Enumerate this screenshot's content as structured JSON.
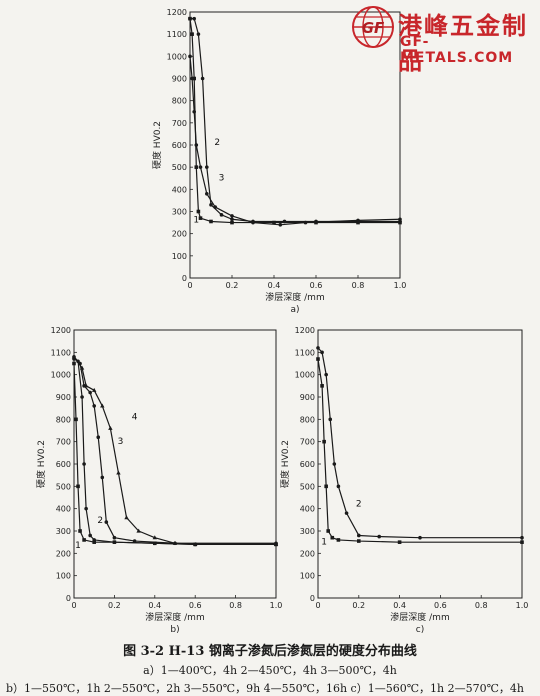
{
  "watermark": {
    "brand_cn": "港峰五金制品",
    "brand_en": "GF-METALS.COM",
    "logo_letters": "GF",
    "accent": "#c8262b"
  },
  "figure": {
    "title": "图 3-2   H-13 钢离子渗氮后渗氮层的硬度分布曲线",
    "legend_a": "a）1—400℃，4h  2—450℃，4h  3—500℃，4h",
    "legend_bc": "b）1—550℃，1h  2—550℃，2h  3—550℃，9h  4—550℃，16h  c）1—560℃，1h  2—570℃，4h"
  },
  "chart_data": [
    {
      "id": "a",
      "type": "line",
      "panel_label": "a)",
      "xlabel": "渗层深度 /mm",
      "ylabel": "硬度  HV0.2",
      "xlim": [
        0,
        1.0
      ],
      "ylim": [
        0,
        1200
      ],
      "xticks": [
        0,
        0.2,
        0.4,
        0.6,
        0.8,
        1.0
      ],
      "xticklabels": [
        "0",
        "0.2",
        "0.4",
        "0.6",
        "0.8",
        "1.0"
      ],
      "yticks": [
        0,
        100,
        200,
        300,
        400,
        500,
        600,
        700,
        800,
        900,
        1000,
        1100,
        1200
      ],
      "grid": false,
      "series": [
        {
          "name": "1",
          "points": [
            [
              0.0,
              1170
            ],
            [
              0.01,
              1100
            ],
            [
              0.02,
              900
            ],
            [
              0.03,
              500
            ],
            [
              0.04,
              300
            ],
            [
              0.05,
              270
            ],
            [
              0.1,
              255
            ],
            [
              0.2,
              250
            ],
            [
              0.4,
              250
            ],
            [
              0.6,
              250
            ],
            [
              0.8,
              250
            ],
            [
              1.0,
              250
            ]
          ]
        },
        {
          "name": "2",
          "points": [
            [
              0.0,
              1170
            ],
            [
              0.02,
              1170
            ],
            [
              0.04,
              1100
            ],
            [
              0.06,
              900
            ],
            [
              0.08,
              500
            ],
            [
              0.1,
              330
            ],
            [
              0.15,
              285
            ],
            [
              0.2,
              265
            ],
            [
              0.3,
              255
            ],
            [
              0.45,
              255
            ],
            [
              0.6,
              255
            ],
            [
              0.8,
              255
            ],
            [
              1.0,
              255
            ]
          ]
        },
        {
          "name": "3",
          "points": [
            [
              0.0,
              1000
            ],
            [
              0.01,
              900
            ],
            [
              0.02,
              750
            ],
            [
              0.03,
              600
            ],
            [
              0.05,
              500
            ],
            [
              0.08,
              380
            ],
            [
              0.12,
              320
            ],
            [
              0.2,
              280
            ],
            [
              0.3,
              250
            ],
            [
              0.43,
              240
            ],
            [
              0.55,
              250
            ],
            [
              0.8,
              260
            ],
            [
              1.0,
              265
            ]
          ]
        }
      ],
      "curve_labels": [
        {
          "text": "1",
          "x": 0.03,
          "y": 250
        },
        {
          "text": "2",
          "x": 0.13,
          "y": 600
        },
        {
          "text": "3",
          "x": 0.15,
          "y": 440
        }
      ]
    },
    {
      "id": "b",
      "type": "line",
      "panel_label": "b)",
      "xlabel": "渗层深度 /mm",
      "ylabel": "硬度  HV0.2",
      "xlim": [
        0,
        1.0
      ],
      "ylim": [
        0,
        1200
      ],
      "xticks": [
        0,
        0.2,
        0.4,
        0.6,
        0.8,
        1.0
      ],
      "xticklabels": [
        "0",
        "0.2",
        "0.4",
        "0.6",
        "0.8",
        "1.0"
      ],
      "yticks": [
        0,
        100,
        200,
        300,
        400,
        500,
        600,
        700,
        800,
        900,
        1000,
        1100,
        1200
      ],
      "grid": false,
      "series": [
        {
          "name": "1",
          "points": [
            [
              0.0,
              1050
            ],
            [
              0.01,
              800
            ],
            [
              0.02,
              500
            ],
            [
              0.03,
              300
            ],
            [
              0.05,
              260
            ],
            [
              0.1,
              250
            ],
            [
              0.2,
              250
            ],
            [
              0.4,
              245
            ],
            [
              0.6,
              240
            ],
            [
              1.0,
              240
            ]
          ]
        },
        {
          "name": "2",
          "points": [
            [
              0.0,
              1070
            ],
            [
              0.02,
              1060
            ],
            [
              0.04,
              900
            ],
            [
              0.05,
              600
            ],
            [
              0.06,
              400
            ],
            [
              0.08,
              280
            ],
            [
              0.1,
              260
            ],
            [
              0.2,
              250
            ],
            [
              0.4,
              245
            ],
            [
              0.6,
              240
            ],
            [
              1.0,
              240
            ]
          ]
        },
        {
          "name": "3",
          "points": [
            [
              0.0,
              1080
            ],
            [
              0.03,
              1050
            ],
            [
              0.05,
              950
            ],
            [
              0.08,
              920
            ],
            [
              0.1,
              860
            ],
            [
              0.12,
              720
            ],
            [
              0.14,
              540
            ],
            [
              0.16,
              340
            ],
            [
              0.2,
              270
            ],
            [
              0.3,
              255
            ],
            [
              0.5,
              245
            ],
            [
              1.0,
              245
            ]
          ]
        },
        {
          "name": "4",
          "points": [
            [
              0.0,
              1080
            ],
            [
              0.04,
              1030
            ],
            [
              0.06,
              950
            ],
            [
              0.1,
              930
            ],
            [
              0.14,
              860
            ],
            [
              0.18,
              760
            ],
            [
              0.22,
              560
            ],
            [
              0.26,
              360
            ],
            [
              0.32,
              300
            ],
            [
              0.4,
              270
            ],
            [
              0.5,
              245
            ],
            [
              0.6,
              240
            ],
            [
              1.0,
              240
            ]
          ]
        }
      ],
      "curve_labels": [
        {
          "text": "1",
          "x": 0.02,
          "y": 225
        },
        {
          "text": "2",
          "x": 0.13,
          "y": 335
        },
        {
          "text": "3",
          "x": 0.23,
          "y": 690
        },
        {
          "text": "4",
          "x": 0.3,
          "y": 800
        }
      ]
    },
    {
      "id": "c",
      "type": "line",
      "panel_label": "c)",
      "xlabel": "渗层深度 /mm",
      "ylabel": "硬度  HV0.2",
      "xlim": [
        0,
        1.0
      ],
      "ylim": [
        0,
        1200
      ],
      "xticks": [
        0,
        0.2,
        0.4,
        0.6,
        0.8,
        1.0
      ],
      "xticklabels": [
        "0",
        "0.2",
        "0.4",
        "0.6",
        "0.8",
        "1.0"
      ],
      "yticks": [
        0,
        100,
        200,
        300,
        400,
        500,
        600,
        700,
        800,
        900,
        1000,
        1100,
        1200
      ],
      "grid": false,
      "series": [
        {
          "name": "1",
          "points": [
            [
              0.0,
              1070
            ],
            [
              0.02,
              950
            ],
            [
              0.03,
              700
            ],
            [
              0.04,
              500
            ],
            [
              0.05,
              300
            ],
            [
              0.07,
              270
            ],
            [
              0.1,
              260
            ],
            [
              0.2,
              255
            ],
            [
              0.4,
              250
            ],
            [
              1.0,
              250
            ]
          ]
        },
        {
          "name": "2",
          "points": [
            [
              0.0,
              1120
            ],
            [
              0.02,
              1100
            ],
            [
              0.04,
              1000
            ],
            [
              0.06,
              800
            ],
            [
              0.08,
              600
            ],
            [
              0.1,
              500
            ],
            [
              0.14,
              380
            ],
            [
              0.2,
              280
            ],
            [
              0.3,
              275
            ],
            [
              0.5,
              270
            ],
            [
              1.0,
              270
            ]
          ]
        }
      ],
      "curve_labels": [
        {
          "text": "1",
          "x": 0.03,
          "y": 240
        },
        {
          "text": "2",
          "x": 0.2,
          "y": 410
        }
      ]
    }
  ]
}
